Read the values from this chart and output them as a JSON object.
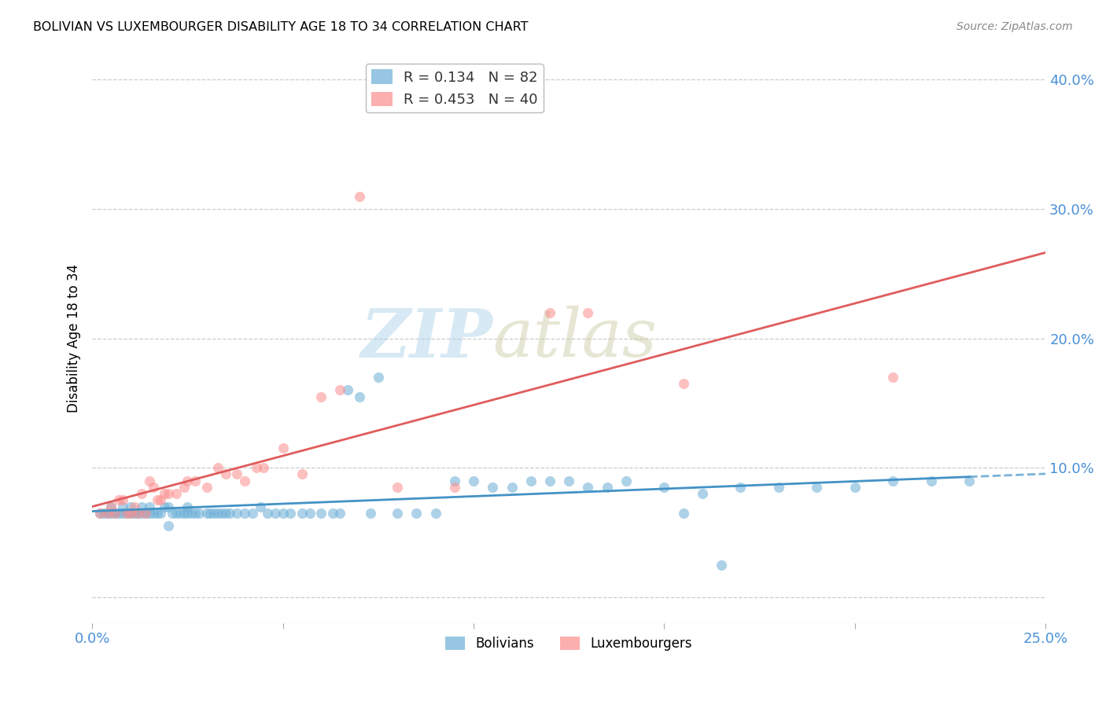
{
  "title": "BOLIVIAN VS LUXEMBOURGER DISABILITY AGE 18 TO 34 CORRELATION CHART",
  "source": "Source: ZipAtlas.com",
  "xlabel": "",
  "ylabel": "Disability Age 18 to 34",
  "xlim": [
    0.0,
    0.25
  ],
  "ylim": [
    -0.02,
    0.42
  ],
  "yticks": [
    0.0,
    0.1,
    0.2,
    0.3,
    0.4
  ],
  "xticks": [
    0.0,
    0.05,
    0.1,
    0.15,
    0.2,
    0.25
  ],
  "ytick_labels": [
    "",
    "10.0%",
    "20.0%",
    "30.0%",
    "40.0%"
  ],
  "xtick_labels": [
    "0.0%",
    "",
    "",
    "",
    "",
    "25.0%"
  ],
  "legend_blue_r": "R = 0.134",
  "legend_blue_n": "N = 82",
  "legend_pink_r": "R = 0.453",
  "legend_pink_n": "N = 40",
  "blue_color": "#6baed6",
  "pink_color": "#fc8d8d",
  "blue_line_color": "#4292c6",
  "pink_line_color": "#e05c5c",
  "watermark_zip": "ZIP",
  "watermark_atlas": "atlas",
  "blue_scatter_x": [
    0.002,
    0.003,
    0.004,
    0.005,
    0.005,
    0.006,
    0.007,
    0.008,
    0.008,
    0.009,
    0.01,
    0.01,
    0.011,
    0.012,
    0.013,
    0.013,
    0.014,
    0.015,
    0.015,
    0.016,
    0.017,
    0.018,
    0.019,
    0.02,
    0.02,
    0.021,
    0.022,
    0.023,
    0.024,
    0.025,
    0.025,
    0.026,
    0.027,
    0.028,
    0.03,
    0.031,
    0.032,
    0.033,
    0.034,
    0.035,
    0.036,
    0.038,
    0.04,
    0.042,
    0.044,
    0.046,
    0.048,
    0.05,
    0.052,
    0.055,
    0.057,
    0.06,
    0.063,
    0.065,
    0.067,
    0.07,
    0.073,
    0.075,
    0.08,
    0.085,
    0.09,
    0.095,
    0.1,
    0.105,
    0.11,
    0.115,
    0.12,
    0.125,
    0.13,
    0.135,
    0.14,
    0.15,
    0.16,
    0.17,
    0.18,
    0.19,
    0.2,
    0.21,
    0.22,
    0.23,
    0.165,
    0.155
  ],
  "blue_scatter_y": [
    0.065,
    0.065,
    0.065,
    0.065,
    0.07,
    0.065,
    0.065,
    0.065,
    0.07,
    0.065,
    0.065,
    0.07,
    0.065,
    0.065,
    0.065,
    0.07,
    0.065,
    0.065,
    0.07,
    0.065,
    0.065,
    0.065,
    0.07,
    0.055,
    0.07,
    0.065,
    0.065,
    0.065,
    0.065,
    0.065,
    0.07,
    0.065,
    0.065,
    0.065,
    0.065,
    0.065,
    0.065,
    0.065,
    0.065,
    0.065,
    0.065,
    0.065,
    0.065,
    0.065,
    0.07,
    0.065,
    0.065,
    0.065,
    0.065,
    0.065,
    0.065,
    0.065,
    0.065,
    0.065,
    0.16,
    0.155,
    0.065,
    0.17,
    0.065,
    0.065,
    0.065,
    0.09,
    0.09,
    0.085,
    0.085,
    0.09,
    0.09,
    0.09,
    0.085,
    0.085,
    0.09,
    0.085,
    0.08,
    0.085,
    0.085,
    0.085,
    0.085,
    0.09,
    0.09,
    0.09,
    0.025,
    0.065
  ],
  "pink_scatter_x": [
    0.002,
    0.004,
    0.005,
    0.006,
    0.007,
    0.008,
    0.009,
    0.01,
    0.011,
    0.012,
    0.013,
    0.014,
    0.015,
    0.016,
    0.017,
    0.018,
    0.019,
    0.02,
    0.022,
    0.024,
    0.025,
    0.027,
    0.03,
    0.033,
    0.035,
    0.038,
    0.04,
    0.043,
    0.045,
    0.05,
    0.055,
    0.06,
    0.065,
    0.07,
    0.08,
    0.095,
    0.12,
    0.13,
    0.155,
    0.21
  ],
  "pink_scatter_y": [
    0.065,
    0.065,
    0.07,
    0.065,
    0.075,
    0.075,
    0.065,
    0.065,
    0.07,
    0.065,
    0.08,
    0.065,
    0.09,
    0.085,
    0.075,
    0.075,
    0.08,
    0.08,
    0.08,
    0.085,
    0.09,
    0.09,
    0.085,
    0.1,
    0.095,
    0.095,
    0.09,
    0.1,
    0.1,
    0.115,
    0.095,
    0.155,
    0.16,
    0.31,
    0.085,
    0.085,
    0.22,
    0.22,
    0.165,
    0.17
  ],
  "background_color": "#ffffff",
  "grid_color": "#cccccc"
}
